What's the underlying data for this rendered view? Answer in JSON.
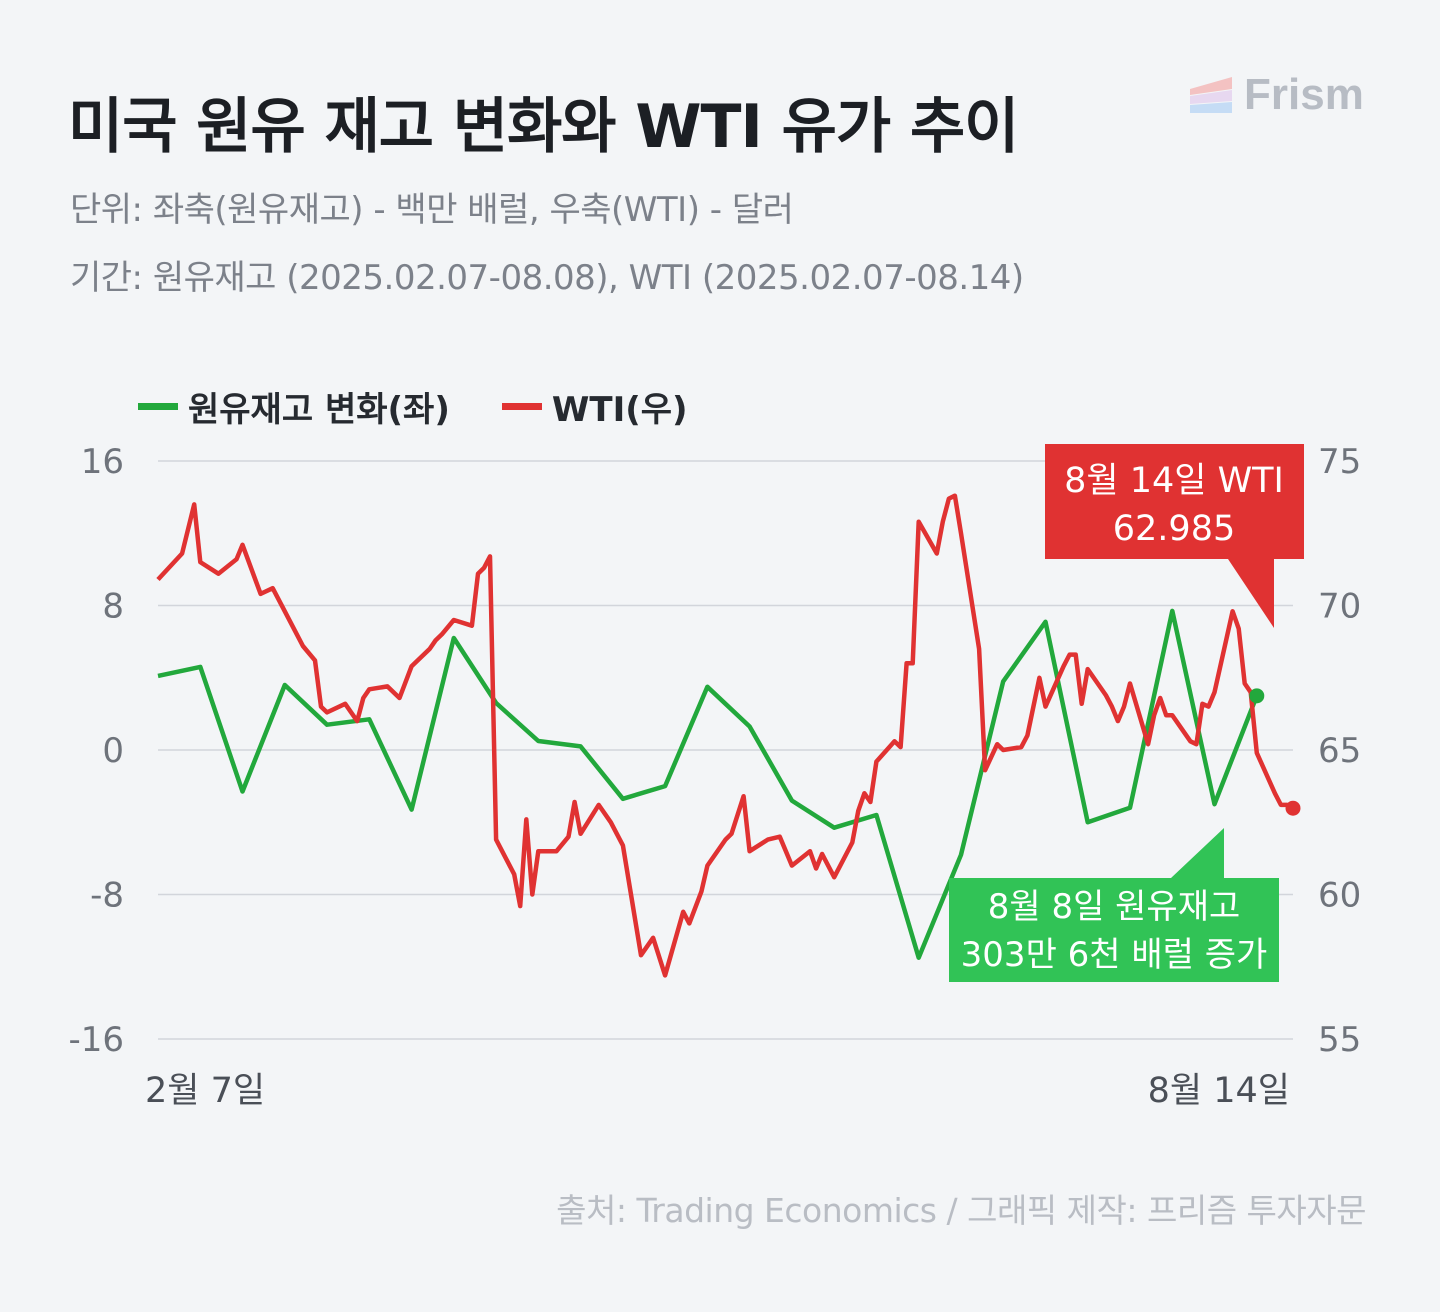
{
  "header": {
    "title": "미국 원유 재고 변화와 WTI 유가 추이",
    "subtitle_unit": "단위: 좌축(원유재고) - 백만 배럴, 우축(WTI) - 달러",
    "subtitle_period": "기간: 원유재고 (2025.02.07-08.08), WTI (2025.02.07-08.14)",
    "brand": "Frism"
  },
  "colors": {
    "inventory": "#22a83c",
    "wti": "#e03232",
    "grid": "#d2d5db",
    "tick_text": "#6e737b",
    "green_box": "#31c356",
    "red_box": "#e03232"
  },
  "footer": {
    "source": "출처: Trading Economics / 그래픽 제작: 프리즘 투자자문"
  },
  "chart_data": {
    "type": "line",
    "legend_position": "top-left",
    "grid": true,
    "x_start_label": "2월 7일",
    "x_end_label": "8월 14일",
    "left_axis": {
      "ylim": [
        -16,
        16
      ],
      "ticks": [
        "16",
        "8",
        "0",
        "-8",
        "-16"
      ]
    },
    "right_axis": {
      "ylim": [
        55,
        75
      ],
      "ticks": [
        "75",
        "70",
        "65",
        "60",
        "55"
      ]
    },
    "series": [
      {
        "name": "원유재고 변화(좌)",
        "axis": "left",
        "x": [
          "2025-02-07",
          "2025-02-14",
          "2025-02-21",
          "2025-02-28",
          "2025-03-07",
          "2025-03-14",
          "2025-03-21",
          "2025-03-28",
          "2025-04-04",
          "2025-04-11",
          "2025-04-18",
          "2025-04-25",
          "2025-05-02",
          "2025-05-09",
          "2025-05-16",
          "2025-05-23",
          "2025-05-30",
          "2025-06-06",
          "2025-06-13",
          "2025-06-20",
          "2025-06-27",
          "2025-07-04",
          "2025-07-11",
          "2025-07-18",
          "2025-07-25",
          "2025-08-01",
          "2025-08-08"
        ],
        "values": [
          4.1,
          4.6,
          -2.3,
          3.6,
          1.4,
          1.7,
          -3.3,
          6.2,
          2.6,
          0.5,
          0.2,
          -2.7,
          -2.0,
          3.5,
          1.3,
          -2.8,
          -4.3,
          -3.6,
          -11.5,
          -5.8,
          3.8,
          7.1,
          -4.0,
          -3.2,
          7.7,
          -3.0,
          3.0
        ]
      },
      {
        "name": "WTI(우)",
        "axis": "right",
        "x": [
          "2025-02-07",
          "2025-02-11",
          "2025-02-13",
          "2025-02-14",
          "2025-02-17",
          "2025-02-20",
          "2025-02-21",
          "2025-02-24",
          "2025-02-26",
          "2025-02-28",
          "2025-03-03",
          "2025-03-05",
          "2025-03-06",
          "2025-03-07",
          "2025-03-10",
          "2025-03-12",
          "2025-03-13",
          "2025-03-14",
          "2025-03-17",
          "2025-03-19",
          "2025-03-21",
          "2025-03-24",
          "2025-03-25",
          "2025-03-26",
          "2025-03-28",
          "2025-03-31",
          "2025-04-01",
          "2025-04-02",
          "2025-04-03",
          "2025-04-04",
          "2025-04-07",
          "2025-04-08",
          "2025-04-09",
          "2025-04-10",
          "2025-04-11",
          "2025-04-14",
          "2025-04-16",
          "2025-04-17",
          "2025-04-18",
          "2025-04-21",
          "2025-04-23",
          "2025-04-25",
          "2025-04-28",
          "2025-04-30",
          "2025-05-02",
          "2025-05-05",
          "2025-05-06",
          "2025-05-08",
          "2025-05-09",
          "2025-05-12",
          "2025-05-13",
          "2025-05-15",
          "2025-05-16",
          "2025-05-19",
          "2025-05-21",
          "2025-05-23",
          "2025-05-26",
          "2025-05-27",
          "2025-05-28",
          "2025-05-30",
          "2025-06-02",
          "2025-06-03",
          "2025-06-04",
          "2025-06-05",
          "2025-06-06",
          "2025-06-09",
          "2025-06-10",
          "2025-06-11",
          "2025-06-12",
          "2025-06-13",
          "2025-06-16",
          "2025-06-17",
          "2025-06-18",
          "2025-06-19",
          "2025-06-20",
          "2025-06-23",
          "2025-06-24",
          "2025-06-26",
          "2025-06-27",
          "2025-06-30",
          "2025-07-01",
          "2025-07-03",
          "2025-07-04",
          "2025-07-07",
          "2025-07-08",
          "2025-07-09",
          "2025-07-10",
          "2025-07-11",
          "2025-07-14",
          "2025-07-15",
          "2025-07-16",
          "2025-07-17",
          "2025-07-18",
          "2025-07-21",
          "2025-07-22",
          "2025-07-23",
          "2025-07-24",
          "2025-07-25",
          "2025-07-28",
          "2025-07-29",
          "2025-07-30",
          "2025-07-31",
          "2025-08-01",
          "2025-08-04",
          "2025-08-05",
          "2025-08-06",
          "2025-08-07",
          "2025-08-08",
          "2025-08-11",
          "2025-08-12",
          "2025-08-13",
          "2025-08-14"
        ],
        "values": [
          70.9,
          71.8,
          73.5,
          71.5,
          71.1,
          71.6,
          72.1,
          70.4,
          70.6,
          69.8,
          68.6,
          68.1,
          66.5,
          66.3,
          66.6,
          66.0,
          66.8,
          67.1,
          67.2,
          66.8,
          67.9,
          68.5,
          68.8,
          69.0,
          69.5,
          69.3,
          71.1,
          71.3,
          71.7,
          61.9,
          60.7,
          59.6,
          62.6,
          60.0,
          61.5,
          61.5,
          62.0,
          63.2,
          62.1,
          63.1,
          62.5,
          61.7,
          57.9,
          58.5,
          57.2,
          59.4,
          59.0,
          60.1,
          61.0,
          61.9,
          62.1,
          63.4,
          61.5,
          61.9,
          62.0,
          61.0,
          61.5,
          60.9,
          61.4,
          60.6,
          61.8,
          62.9,
          63.5,
          63.2,
          64.6,
          65.3,
          65.1,
          68.0,
          68.0,
          72.9,
          71.8,
          72.9,
          73.7,
          73.8,
          72.5,
          68.5,
          64.3,
          65.2,
          65.0,
          65.1,
          65.5,
          67.5,
          66.5,
          67.9,
          68.3,
          68.3,
          66.6,
          67.8,
          66.9,
          66.5,
          66.0,
          66.5,
          67.3,
          65.2,
          66.2,
          66.8,
          66.2,
          66.2,
          65.3,
          65.2,
          66.6,
          66.5,
          67.0,
          69.8,
          69.2,
          67.3,
          67.0,
          64.9,
          63.5,
          63.1,
          63.1,
          62.985
        ]
      }
    ],
    "annotations": [
      {
        "series": "WTI(우)",
        "x": "2025-08-14",
        "line1": "8월 14일 WTI",
        "line2": "62.985"
      },
      {
        "series": "원유재고 변화(좌)",
        "x": "2025-08-08",
        "line1": "8월 8일 원유재고",
        "line2": "303만 6천 배럴 증가"
      }
    ]
  }
}
